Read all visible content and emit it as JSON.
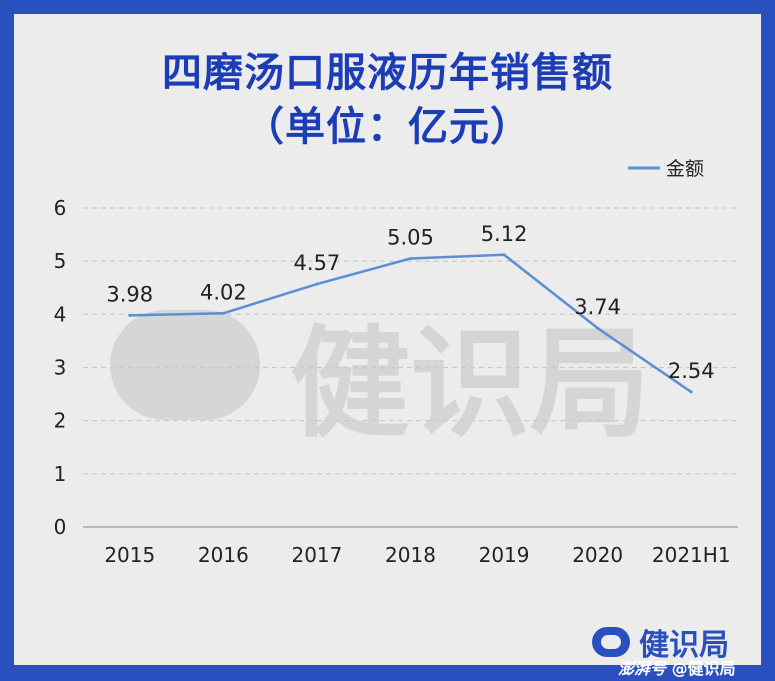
{
  "chart_data": {
    "type": "line",
    "title_line1": "四磨汤口服液历年销售额",
    "title_line2": "（单位：亿元）",
    "categories": [
      "2015",
      "2016",
      "2017",
      "2018",
      "2019",
      "2020",
      "2021H1"
    ],
    "series": [
      {
        "name": "金额",
        "values": [
          3.98,
          4.02,
          4.57,
          5.05,
          5.12,
          3.74,
          2.54
        ],
        "labels": [
          "3.98",
          "4.02",
          "4.57",
          "5.05",
          "5.12",
          "3.74",
          "2.54"
        ],
        "color": "#5b8fd3"
      }
    ],
    "y_ticks": [
      "0",
      "1",
      "2",
      "3",
      "4",
      "5",
      "6"
    ],
    "ylim": [
      0,
      6
    ],
    "grid": true,
    "legend_position": "top-right"
  },
  "watermark_text": "健识局",
  "footer": {
    "logo_text": "健识局",
    "credit_brand": "澎湃号",
    "credit_handle": "@健识局"
  },
  "colors": {
    "frame": "#2a4fbf",
    "title": "#1c3db5",
    "line": "#5b8fd3",
    "background": "#ececec"
  }
}
